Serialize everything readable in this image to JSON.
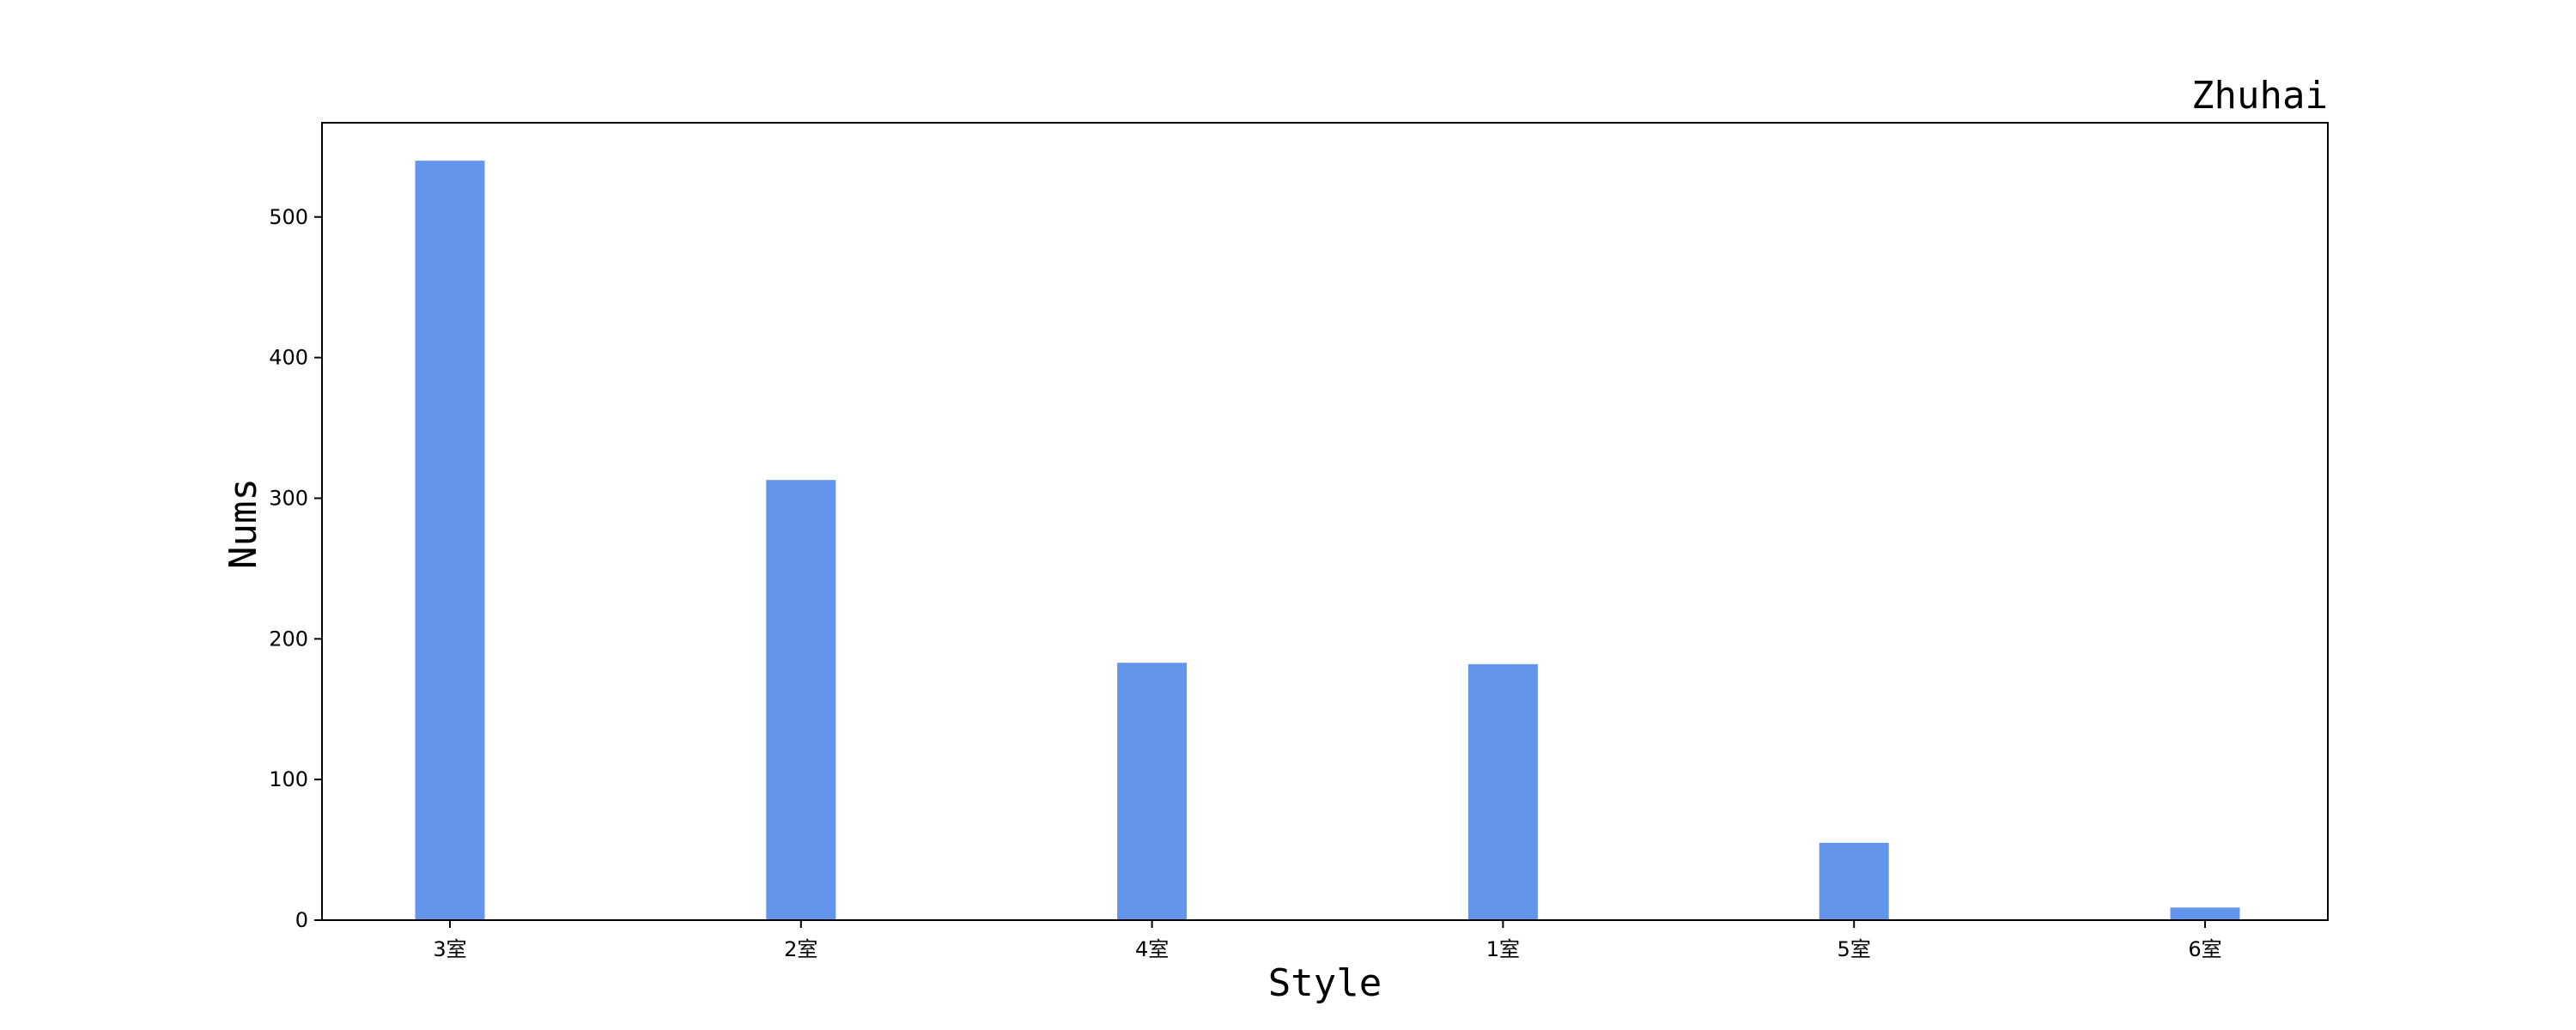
{
  "chart_data": {
    "type": "bar",
    "title": "Zhuhai",
    "xlabel": "Style",
    "ylabel": "Nums",
    "categories": [
      "3室",
      "2室",
      "4室",
      "1室",
      "5室",
      "6室"
    ],
    "values": [
      540,
      313,
      183,
      182,
      55,
      9
    ],
    "ylim": [
      0,
      567
    ],
    "yticks": [
      0,
      100,
      200,
      300,
      400,
      500
    ],
    "title_position": "top-right",
    "grid": false,
    "bar_color": "#6495ED"
  }
}
